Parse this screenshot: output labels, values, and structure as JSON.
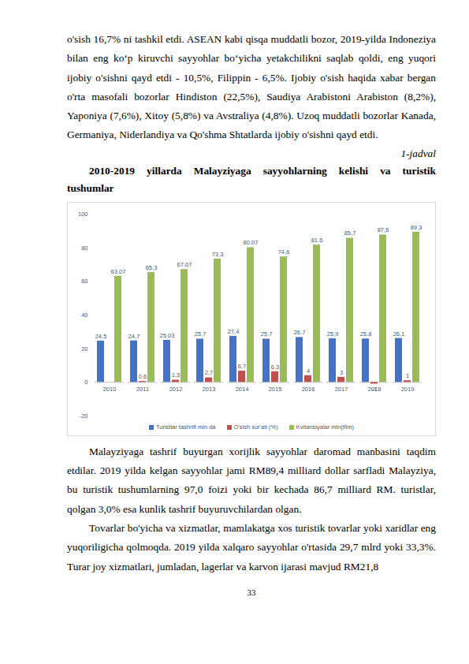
{
  "paragraphs_before": [
    "o'sish 16,7% ni tashkil etdi. ASEAN kabi qisqa muddatli bozor, 2019-yilda Indoneziya bilan eng ko‘p kiruvchi sayyohlar bo‘yicha yetakchilikni saqlab qoldi, eng yuqori ijobiy o'sishni qayd etdi - 10,5%, Filippin - 6,5%. Ijobiy o'sish haqida xabar bergan o'rta masofali bozorlar Hindiston (22,5%), Saudiya Arabistoni Arabiston (8,2%), Yaponiya (7,6%), Xitoy (5,8%) va Avstraliya (4,8%). Uzoq muddatli bozorlar Kanada, Germaniya, Niderlandiya va Qo'shma Shtatlarda ijobiy o'sishni qayd etdi."
  ],
  "table_label": "1-jadval",
  "caption": [
    "2010-2019 yillarda Malayziyaga sayyohlarning kelishi va turistik",
    "tushumlar"
  ],
  "chart_data": {
    "type": "bar",
    "categories": [
      "2010",
      "2011",
      "2012",
      "2013",
      "2014",
      "2015",
      "2016",
      "2017",
      "2018",
      "2019"
    ],
    "series": [
      {
        "name": "Turistlar tashrifi mln da",
        "color": "#4472c4",
        "values": [
          24.5,
          24.7,
          25.03,
          25.7,
          27.4,
          25.7,
          26.7,
          25.9,
          25.8,
          26.1
        ],
        "value_labels": [
          "24,5",
          "24,7",
          "25.03",
          "25,7",
          "27,4",
          "25,7",
          "26,7",
          "25,9",
          "25,8",
          "26,1"
        ]
      },
      {
        "name": "O'sish sur'ati (%)",
        "color": "#c0504d",
        "values": [
          null,
          0.6,
          1.3,
          2.7,
          6.7,
          6.3,
          4,
          3,
          -1,
          1
        ],
        "value_labels": [
          null,
          "0,6",
          "1,3",
          "2,7",
          "6,7",
          "6,3",
          "4",
          "3",
          "-1",
          "1"
        ]
      },
      {
        "name": "Kvitansiyalar mln(Rm)",
        "color": "#9bbb59",
        "values": [
          63.07,
          65.3,
          67.07,
          73.3,
          80.07,
          74.6,
          81.6,
          85.7,
          87.6,
          89.3
        ],
        "value_labels": [
          "63.07",
          "65,3",
          "67,07",
          "73,3",
          "80.07",
          "74,6",
          "81,6",
          "85,7",
          "87,6",
          "89,3"
        ]
      }
    ],
    "ylim": [
      -20,
      100
    ],
    "yticks": [
      -20,
      0,
      20,
      40,
      60,
      80,
      100
    ],
    "grid": false,
    "data_labels": true,
    "legend": "bottom"
  },
  "paragraphs_after": [
    "Malayziyaga tashrif buyurgan xorijlik sayyohlar daromad manbasini taqdim etdilar. 2019 yilda kelgan sayyohlar jami RM89,4 milliard dollar sarfladi Malayziya, bu turistik tushumlarning 97,0 foizi yoki bir kechada 86,7 milliard RM. turistlar, qolgan 3,0% esa kunlik tashrif buyuruvchilardan olgan.",
    "Tovarlar bo'yicha va xizmatlar, mamlakatga xos turistik tovarlar yoki xaridlar eng yuqoriligicha qolmoqda. 2019 yilda xalqaro sayyohlar o'rtasida 29,7 mlrd yoki 33,3%. Turar joy xizmatlari, jumladan, lagerlar va karvon ijarasi mavjud RM21,8"
  ],
  "page_number": "33"
}
